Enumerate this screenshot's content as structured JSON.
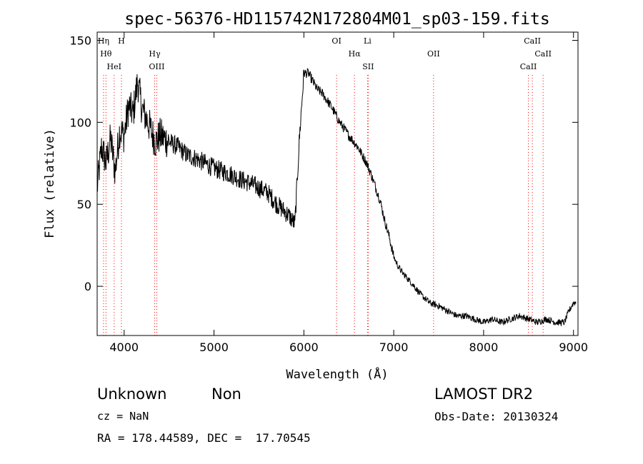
{
  "chart_data": {
    "type": "line",
    "title": "spec-56376-HD115742N172804M01_sp03-159.fits",
    "xlabel": "Wavelength (Å)",
    "ylabel": "Flux (relative)",
    "xlim": [
      3700,
      9050
    ],
    "ylim": [
      -30,
      155
    ],
    "xticks": [
      4000,
      5000,
      6000,
      7000,
      8000,
      9000
    ],
    "yticks": [
      0,
      50,
      100,
      150
    ],
    "grid": false,
    "line_color": "#000000",
    "marker_color": "#ff0000",
    "series": [
      {
        "x": [
          3700,
          3750,
          3800,
          3850,
          3900,
          3950,
          4000,
          4050,
          4100,
          4150,
          4200,
          4250,
          4300,
          4350,
          4400,
          4450,
          4500,
          4600,
          4700,
          4800,
          4900,
          5000,
          5100,
          5200,
          5300,
          5400,
          5500,
          5600,
          5700,
          5800,
          5850,
          5900,
          5950,
          6000,
          6050,
          6100,
          6150,
          6200,
          6300,
          6400,
          6500,
          6600,
          6650,
          6700,
          6750,
          6800,
          6850,
          6900,
          6950,
          7000,
          7050,
          7100,
          7200,
          7300,
          7400,
          7500,
          7600,
          7700,
          7800,
          7900,
          8000,
          8100,
          8200,
          8300,
          8400,
          8500,
          8600,
          8700,
          8800,
          8900,
          8950,
          9000
        ],
        "y": [
          60,
          85,
          75,
          90,
          70,
          95,
          92,
          110,
          105,
          125,
          108,
          102,
          95,
          88,
          92,
          90,
          88,
          85,
          80,
          78,
          75,
          72,
          70,
          68,
          65,
          63,
          60,
          57,
          50,
          45,
          42,
          38,
          90,
          130,
          130,
          125,
          120,
          118,
          110,
          100,
          92,
          85,
          80,
          75,
          68,
          60,
          52,
          40,
          30,
          18,
          12,
          8,
          2,
          -5,
          -10,
          -12,
          -15,
          -18,
          -18,
          -20,
          -22,
          -20,
          -22,
          -20,
          -18,
          -20,
          -22,
          -20,
          -22,
          -22,
          -15,
          -10
        ]
      }
    ],
    "lines": [
      {
        "x": 3771,
        "labels": [
          "Hη"
        ]
      },
      {
        "x": 3798,
        "labels": [
          "Hθ"
        ]
      },
      {
        "x": 3889,
        "labels": [
          "HeI"
        ]
      },
      {
        "x": 3970,
        "labels": [
          "H"
        ]
      },
      {
        "x": 4340,
        "labels": [
          "Hγ"
        ]
      },
      {
        "x": 4363,
        "labels": [
          "OIII"
        ]
      },
      {
        "x": 6364,
        "labels": [
          "OI"
        ]
      },
      {
        "x": 6563,
        "labels": [
          "Hα"
        ]
      },
      {
        "x": 6716,
        "labels": [
          "SII"
        ]
      },
      {
        "x": 6708,
        "labels": [
          "Li"
        ]
      },
      {
        "x": 7443,
        "labels": [
          "OII"
        ]
      },
      {
        "x": 8498,
        "labels": [
          "CaII"
        ]
      },
      {
        "x": 8542,
        "labels": [
          "CaII"
        ]
      },
      {
        "x": 8662,
        "labels": [
          "CaII"
        ]
      }
    ]
  },
  "footer": {
    "class_label": "Unknown",
    "subclass_label": "Non",
    "survey": "LAMOST DR2",
    "cz": "cz = NaN",
    "obs_date": "Obs-Date: 20130324",
    "radec": "RA = 178.44589, DEC =  17.70545"
  }
}
